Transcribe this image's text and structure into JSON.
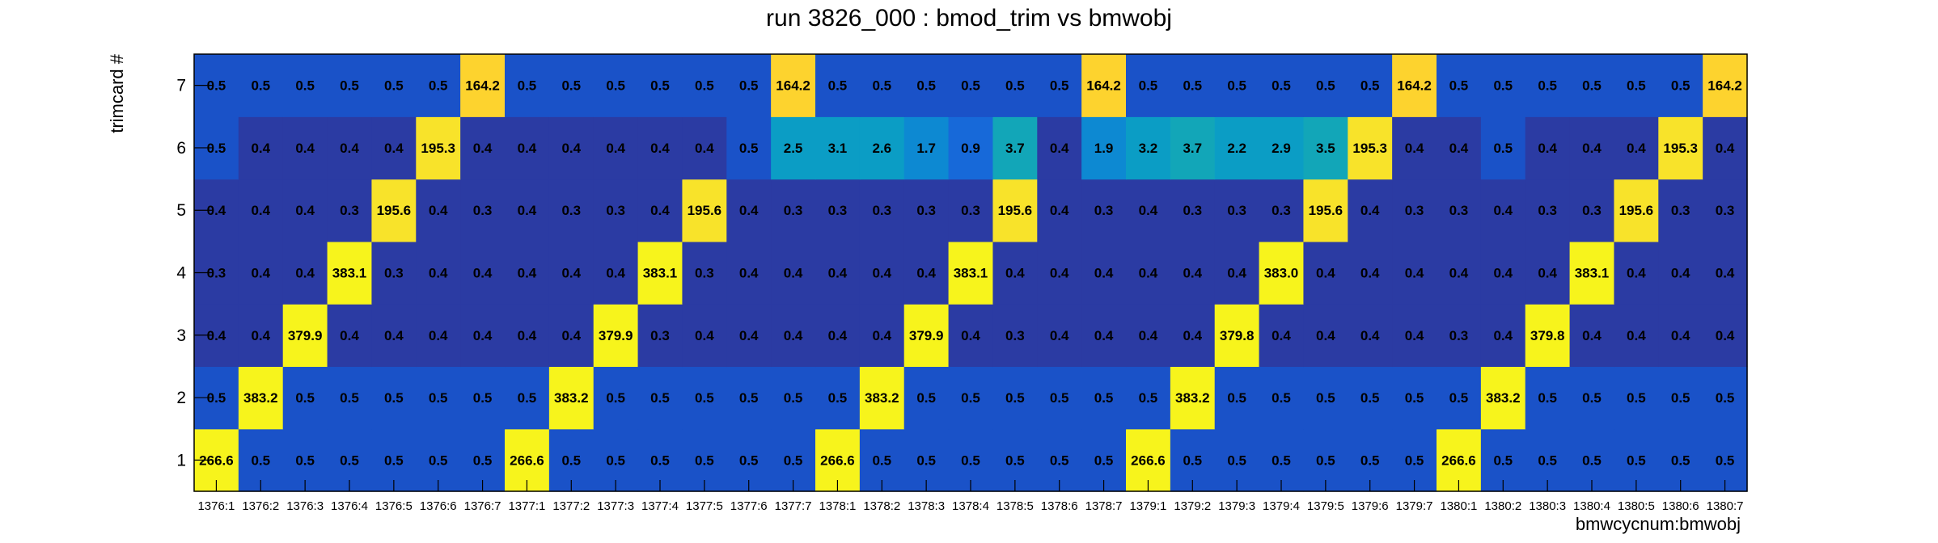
{
  "chart_data": {
    "type": "heatmap",
    "title": "run 3826_000 : bmod_trim vs bmwobj",
    "xlabel": "bmwcycnum:bmwobj",
    "ylabel": "trimcard #",
    "x_categories": [
      "1376:1",
      "1376:2",
      "1376:3",
      "1376:4",
      "1376:5",
      "1376:6",
      "1376:7",
      "1377:1",
      "1377:2",
      "1377:3",
      "1377:4",
      "1377:5",
      "1377:6",
      "1377:7",
      "1378:1",
      "1378:2",
      "1378:3",
      "1378:4",
      "1378:5",
      "1378:6",
      "1378:7",
      "1379:1",
      "1379:2",
      "1379:3",
      "1379:4",
      "1379:5",
      "1379:6",
      "1379:7",
      "1380:1",
      "1380:2",
      "1380:3",
      "1380:4",
      "1380:5",
      "1380:6",
      "1380:7"
    ],
    "y_categories": [
      "1",
      "2",
      "3",
      "4",
      "5",
      "6",
      "7"
    ],
    "values": [
      [
        266.6,
        0.5,
        0.5,
        0.5,
        0.5,
        0.5,
        0.5,
        266.6,
        0.5,
        0.5,
        0.5,
        0.5,
        0.5,
        0.5,
        266.6,
        0.5,
        0.5,
        0.5,
        0.5,
        0.5,
        0.5,
        266.6,
        0.5,
        0.5,
        0.5,
        0.5,
        0.5,
        0.5,
        266.6,
        0.5,
        0.5,
        0.5,
        0.5,
        0.5,
        0.5
      ],
      [
        0.5,
        383.2,
        0.5,
        0.5,
        0.5,
        0.5,
        0.5,
        0.5,
        383.2,
        0.5,
        0.5,
        0.5,
        0.5,
        0.5,
        0.5,
        383.2,
        0.5,
        0.5,
        0.5,
        0.5,
        0.5,
        0.5,
        383.2,
        0.5,
        0.5,
        0.5,
        0.5,
        0.5,
        0.5,
        383.2,
        0.5,
        0.5,
        0.5,
        0.5,
        0.5
      ],
      [
        0.4,
        0.4,
        379.9,
        0.4,
        0.4,
        0.4,
        0.4,
        0.4,
        0.4,
        379.9,
        0.3,
        0.4,
        0.4,
        0.4,
        0.4,
        0.4,
        379.9,
        0.4,
        0.3,
        0.4,
        0.4,
        0.4,
        0.4,
        379.8,
        0.4,
        0.4,
        0.4,
        0.4,
        0.3,
        0.4,
        379.8,
        0.4,
        0.4,
        0.4,
        0.4
      ],
      [
        0.3,
        0.4,
        0.4,
        383.1,
        0.3,
        0.4,
        0.4,
        0.4,
        0.4,
        0.4,
        383.1,
        0.3,
        0.4,
        0.4,
        0.4,
        0.4,
        0.4,
        383.1,
        0.4,
        0.4,
        0.4,
        0.4,
        0.4,
        0.4,
        383.0,
        0.4,
        0.4,
        0.4,
        0.4,
        0.4,
        0.4,
        383.1,
        0.4,
        0.4,
        0.4
      ],
      [
        0.4,
        0.4,
        0.4,
        0.3,
        195.6,
        0.4,
        0.3,
        0.4,
        0.3,
        0.3,
        0.4,
        195.6,
        0.4,
        0.3,
        0.3,
        0.3,
        0.3,
        0.3,
        195.6,
        0.4,
        0.3,
        0.4,
        0.3,
        0.3,
        0.3,
        195.6,
        0.4,
        0.3,
        0.3,
        0.4,
        0.3,
        0.3,
        195.6,
        0.3,
        0.3
      ],
      [
        0.5,
        0.4,
        0.4,
        0.4,
        0.4,
        195.3,
        0.4,
        0.4,
        0.4,
        0.4,
        0.4,
        0.4,
        0.5,
        2.5,
        3.1,
        2.6,
        1.7,
        0.9,
        3.7,
        0.4,
        1.9,
        3.2,
        3.7,
        2.2,
        2.9,
        3.5,
        195.3,
        0.4,
        0.4,
        0.5,
        0.4,
        0.4,
        0.4,
        195.3,
        0.4
      ],
      [
        0.5,
        0.5,
        0.5,
        0.5,
        0.5,
        0.5,
        164.2,
        0.5,
        0.5,
        0.5,
        0.5,
        0.5,
        0.5,
        164.2,
        0.5,
        0.5,
        0.5,
        0.5,
        0.5,
        0.5,
        164.2,
        0.5,
        0.5,
        0.5,
        0.5,
        0.5,
        0.5,
        164.2,
        0.5,
        0.5,
        0.5,
        0.5,
        0.5,
        0.5,
        164.2
      ]
    ],
    "colors": {
      "low_040": "#2b3ba3",
      "low_050": "#1a52c8",
      "mid_1": "#1769d9",
      "mid_2": "#0d89d2",
      "mid_3": "#0b9dc5",
      "mid_35": "#12a6b8",
      "high_160": "#fdd32e",
      "high_190": "#f8e32a",
      "high_260": "#f7f41c"
    },
    "grid": false,
    "legend": "none"
  }
}
